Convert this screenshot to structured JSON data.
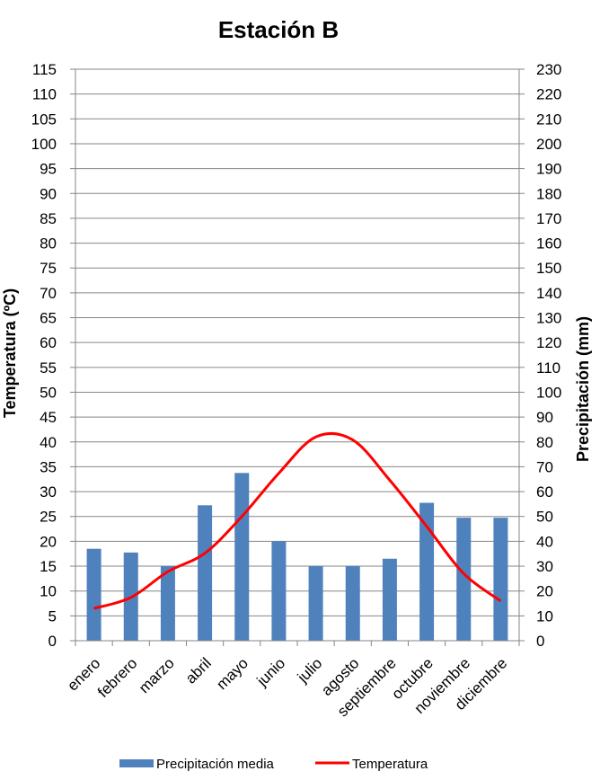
{
  "chart_data": {
    "type": "bar",
    "title": "Estación B",
    "ylabel": "Temperatura (ºC)",
    "y2label": "Precipitación (mm)",
    "ylim": [
      0,
      115
    ],
    "y2lim": [
      0,
      230
    ],
    "yticks": [
      "0",
      "5",
      "10",
      "15",
      "20",
      "25",
      "30",
      "35",
      "40",
      "45",
      "50",
      "55",
      "60",
      "65",
      "70",
      "75",
      "80",
      "85",
      "90",
      "95",
      "100",
      "105",
      "110",
      "115"
    ],
    "y2ticks": [
      "0",
      "10",
      "20",
      "30",
      "40",
      "50",
      "60",
      "70",
      "80",
      "90",
      "100",
      "110",
      "120",
      "130",
      "140",
      "150",
      "160",
      "170",
      "180",
      "190",
      "200",
      "210",
      "220",
      "230"
    ],
    "categories": [
      "enero",
      "febrero",
      "marzo",
      "abril",
      "mayo",
      "junio",
      "julio",
      "agosto",
      "septiembre",
      "octubre",
      "noviembre",
      "diciembre"
    ],
    "grid": true,
    "legend_position": "bottom",
    "series": [
      {
        "name": "Precipitación media",
        "type": "bar",
        "axis": "right",
        "color": "#4F81BD",
        "values": [
          37,
          35.5,
          30,
          54.5,
          67.5,
          40,
          30,
          30,
          33,
          55.5,
          49.5,
          49.5
        ]
      },
      {
        "name": "Temperatura",
        "type": "line",
        "axis": "left",
        "color": "#FF0000",
        "values": [
          6.5,
          8.7,
          13.9,
          17.6,
          25,
          33.7,
          41,
          40.4,
          32.3,
          23,
          13.5,
          8
        ]
      }
    ]
  }
}
